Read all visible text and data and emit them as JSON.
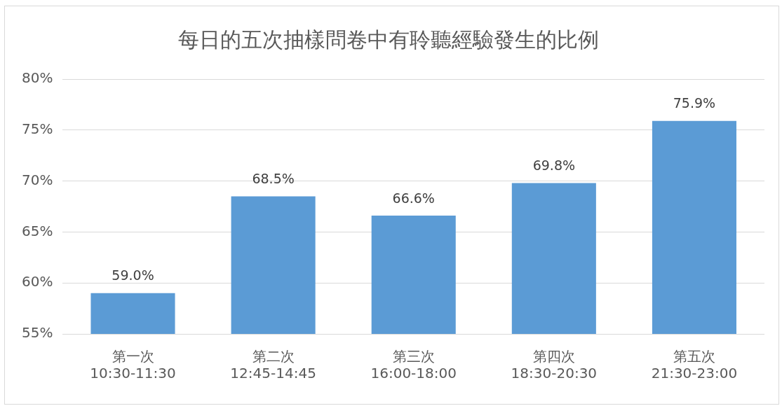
{
  "chart_data": {
    "type": "bar",
    "title": "每日的五次抽樣問卷中有聆聽經驗發生的比例",
    "categories": [
      "第一次\n10:30-11:30",
      "第二次\n12:45-14:45",
      "第三次\n16:00-18:00",
      "第四次\n18:30-20:30",
      "第五次\n21:30-23:00"
    ],
    "values": [
      59.0,
      68.5,
      66.6,
      69.8,
      75.9
    ],
    "value_labels": [
      "59.0%",
      "68.5%",
      "66.6%",
      "69.8%",
      "75.9%"
    ],
    "color": "#5b9bd5",
    "ylim": [
      55,
      80
    ],
    "yticks": [
      {
        "value": 55,
        "label": "55%"
      },
      {
        "value": 60,
        "label": "60%"
      },
      {
        "value": 65,
        "label": "65%"
      },
      {
        "value": 70,
        "label": "70%"
      },
      {
        "value": 75,
        "label": "75%"
      },
      {
        "value": 80,
        "label": "80%"
      }
    ],
    "grid": "y",
    "legend": false
  }
}
